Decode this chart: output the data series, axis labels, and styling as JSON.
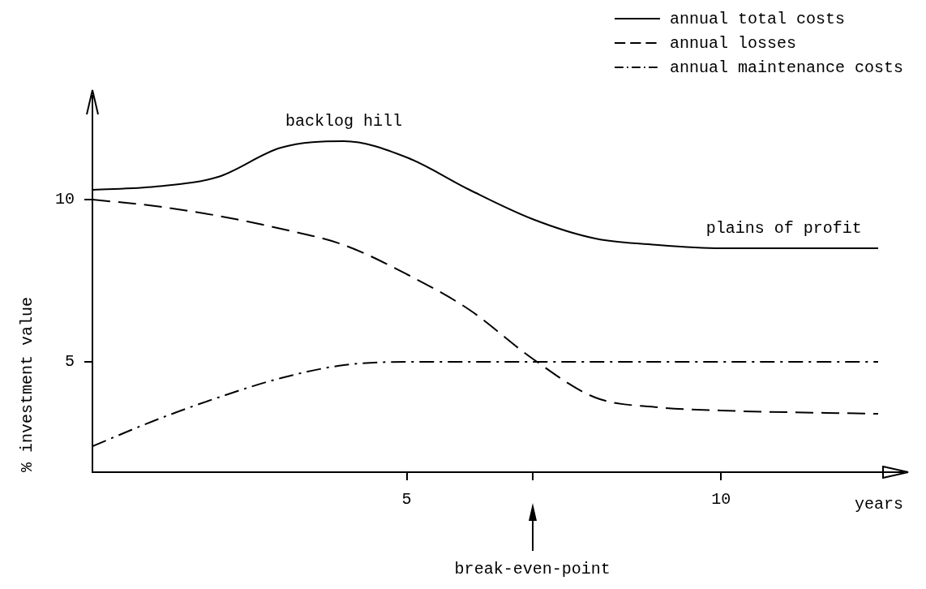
{
  "chart_data": {
    "type": "line",
    "xlabel": "years",
    "ylabel": "% investment value",
    "x": [
      0,
      1,
      2,
      3,
      4,
      5,
      6,
      7,
      8,
      9,
      10,
      12.5
    ],
    "series": [
      {
        "name": "annual total costs",
        "color": "#000000",
        "line_style": "solid",
        "values": [
          10.3,
          10.4,
          10.7,
          11.6,
          11.8,
          11.3,
          10.3,
          9.4,
          8.8,
          8.6,
          8.5,
          8.5
        ]
      },
      {
        "name": "annual losses",
        "color": "#000000",
        "line_style": "dashed",
        "values": [
          10,
          9.8,
          9.5,
          9.1,
          8.6,
          7.7,
          6.6,
          5.1,
          3.9,
          3.6,
          3.5,
          3.4
        ]
      },
      {
        "name": "annual maintenance costs",
        "color": "#000000",
        "line_style": "dashdot",
        "values": [
          2.4,
          3.2,
          3.9,
          4.5,
          4.9,
          5,
          5,
          5,
          5,
          5,
          5,
          5
        ]
      }
    ],
    "xlim": [
      0,
      12.9
    ],
    "ylim": [
      1.6,
      13.2
    ],
    "xticks": [
      5,
      {
        "value": 7,
        "label": null
      },
      10
    ],
    "yticks": [
      5,
      10
    ],
    "grid": false,
    "legend": "top right",
    "marker": "none",
    "annotations": [
      {
        "text": "backlog hill",
        "x": 4,
        "y": 11.8
      },
      {
        "text": "plains of profit",
        "x": 11,
        "y": 8.5
      },
      "break-even-point"
    ]
  }
}
